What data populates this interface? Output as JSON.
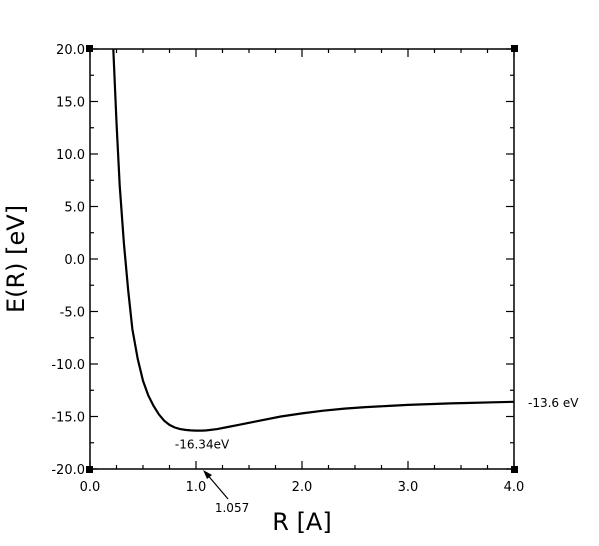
{
  "chart_data": {
    "type": "line",
    "title": "",
    "xlabel": "R [A]",
    "ylabel": "E(R) [eV]",
    "xlim": [
      0.0,
      4.0
    ],
    "ylim": [
      -20.0,
      20.0
    ],
    "x_ticks": [
      "0.0",
      "1.0",
      "2.0",
      "3.0",
      "4.0"
    ],
    "y_ticks": [
      "20.0",
      "15.0",
      "10.0",
      "5.0",
      "0.0",
      "-5.0",
      "-10.0",
      "-15.0",
      "-20.0"
    ],
    "grid": false,
    "legend": "none",
    "series": [
      {
        "x": [
          0.22,
          0.25,
          0.28,
          0.32,
          0.36,
          0.4,
          0.45,
          0.5,
          0.55,
          0.6,
          0.65,
          0.7,
          0.75,
          0.8,
          0.85,
          0.9,
          0.95,
          1.0,
          1.057,
          1.1,
          1.2,
          1.3,
          1.4,
          1.5,
          1.6,
          1.8,
          2.0,
          2.2,
          2.4,
          2.6,
          2.8,
          3.0,
          3.2,
          3.4,
          3.6,
          3.8,
          4.0
        ],
        "y": [
          20.0,
          13.0,
          7.0,
          1.5,
          -3.0,
          -6.7,
          -9.5,
          -11.6,
          -13.0,
          -14.0,
          -14.8,
          -15.4,
          -15.8,
          -16.05,
          -16.2,
          -16.28,
          -16.32,
          -16.34,
          -16.34,
          -16.32,
          -16.2,
          -16.0,
          -15.8,
          -15.6,
          -15.4,
          -15.0,
          -14.7,
          -14.45,
          -14.25,
          -14.1,
          -14.0,
          -13.9,
          -13.82,
          -13.75,
          -13.7,
          -13.65,
          -13.6
        ]
      }
    ],
    "annotations": [
      {
        "text": "-16.34eV",
        "x": 1.057,
        "y": -16.34
      },
      {
        "text": "1.057",
        "x": 1.057,
        "y": -20.0
      },
      {
        "text": "-13.6 eV",
        "x": 4.0,
        "y": -13.6
      }
    ]
  }
}
